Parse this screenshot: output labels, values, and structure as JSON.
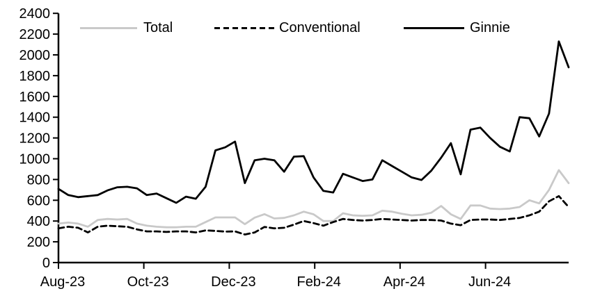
{
  "chart_data": {
    "type": "line",
    "title": "",
    "xlabel": "",
    "ylabel": "",
    "ylim": [
      0,
      2400
    ],
    "y_tick_step": 200,
    "y_tick_labels": [
      "0",
      "200",
      "400",
      "600",
      "800",
      "1000",
      "1200",
      "1400",
      "1600",
      "1800",
      "2000",
      "2200",
      "2400"
    ],
    "x_tick_labels": [
      "Aug-23",
      "Oct-23",
      "Dec-23",
      "Feb-24",
      "Apr-24",
      "Jun-24"
    ],
    "x_tick_index_positions": [
      0,
      8.7,
      17.41,
      26.12,
      34.82,
      43.53
    ],
    "n_points": 53,
    "x_cadence": "weekly",
    "grid": false,
    "legend_position": "top",
    "axis_color": "#000000",
    "series": [
      {
        "name": "Total",
        "color": "#c9c9c9",
        "dash": null,
        "values": [
          375,
          385,
          375,
          345,
          410,
          420,
          415,
          420,
          375,
          355,
          345,
          340,
          340,
          345,
          345,
          390,
          435,
          435,
          435,
          370,
          433,
          466,
          425,
          430,
          455,
          490,
          465,
          400,
          400,
          475,
          455,
          450,
          455,
          500,
          490,
          470,
          455,
          460,
          480,
          545,
          465,
          420,
          550,
          550,
          520,
          515,
          520,
          535,
          600,
          570,
          700,
          890,
          765
        ]
      },
      {
        "name": "Conventional",
        "color": "#000000",
        "dash": "8 5",
        "values": [
          330,
          345,
          335,
          290,
          345,
          355,
          350,
          345,
          320,
          300,
          300,
          295,
          300,
          300,
          290,
          310,
          305,
          298,
          300,
          270,
          290,
          343,
          330,
          335,
          365,
          400,
          380,
          355,
          390,
          420,
          410,
          405,
          410,
          420,
          415,
          410,
          405,
          410,
          410,
          405,
          375,
          360,
          410,
          415,
          415,
          410,
          420,
          430,
          455,
          490,
          590,
          640,
          535
        ]
      },
      {
        "name": "Ginnie",
        "color": "#000000",
        "dash": null,
        "values": [
          710,
          650,
          630,
          640,
          650,
          695,
          725,
          730,
          715,
          650,
          665,
          620,
          575,
          635,
          615,
          730,
          1080,
          1110,
          1165,
          765,
          985,
          1000,
          985,
          875,
          1020,
          1025,
          820,
          690,
          675,
          855,
          820,
          785,
          800,
          985,
          930,
          875,
          820,
          795,
          885,
          1010,
          1150,
          850,
          1280,
          1300,
          1200,
          1115,
          1070,
          1400,
          1390,
          1215,
          1435,
          2130,
          1880
        ]
      }
    ]
  }
}
